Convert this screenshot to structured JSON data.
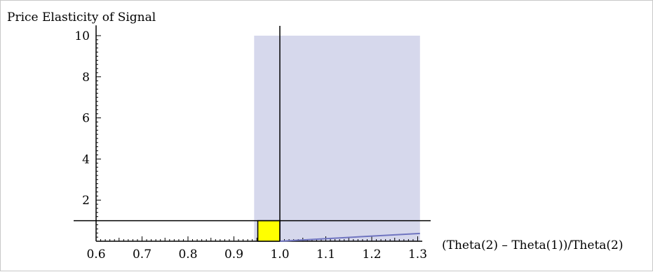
{
  "chart_data": {
    "type": "line",
    "title": "",
    "ylabel": "Price Elasticity of Signal",
    "xlabel": "(Theta(2) – Theta(1))/Theta(2)",
    "xlim": [
      0.6,
      1.31
    ],
    "ylim": [
      0,
      10.5
    ],
    "x_ticks": [
      0.6,
      0.7,
      0.8,
      0.9,
      1.0,
      1.1,
      1.2,
      1.3
    ],
    "x_tick_labels": [
      "0.6",
      "0.7",
      "0.8",
      "0.9",
      "1.0",
      "1.1",
      "1.2",
      "1.3"
    ],
    "y_ticks": [
      2,
      4,
      6,
      8,
      10
    ],
    "y_tick_labels": [
      "2",
      "4",
      "6",
      "8",
      "10"
    ],
    "shaded_region": {
      "x": [
        0.944,
        1.305
      ],
      "y": [
        0,
        10
      ],
      "color": "#d6d8ec"
    },
    "highlight_box": {
      "x": [
        0.952,
        1.0
      ],
      "y": [
        0,
        1
      ],
      "color": "#ffff00"
    },
    "reference_lines": {
      "x": 1.0,
      "y": 1.0
    },
    "series": [
      {
        "x": [
          1.0,
          1.305
        ],
        "y": [
          0.0,
          0.38
        ],
        "color": "#6f74c0"
      }
    ],
    "grid": false,
    "legend": "none"
  }
}
